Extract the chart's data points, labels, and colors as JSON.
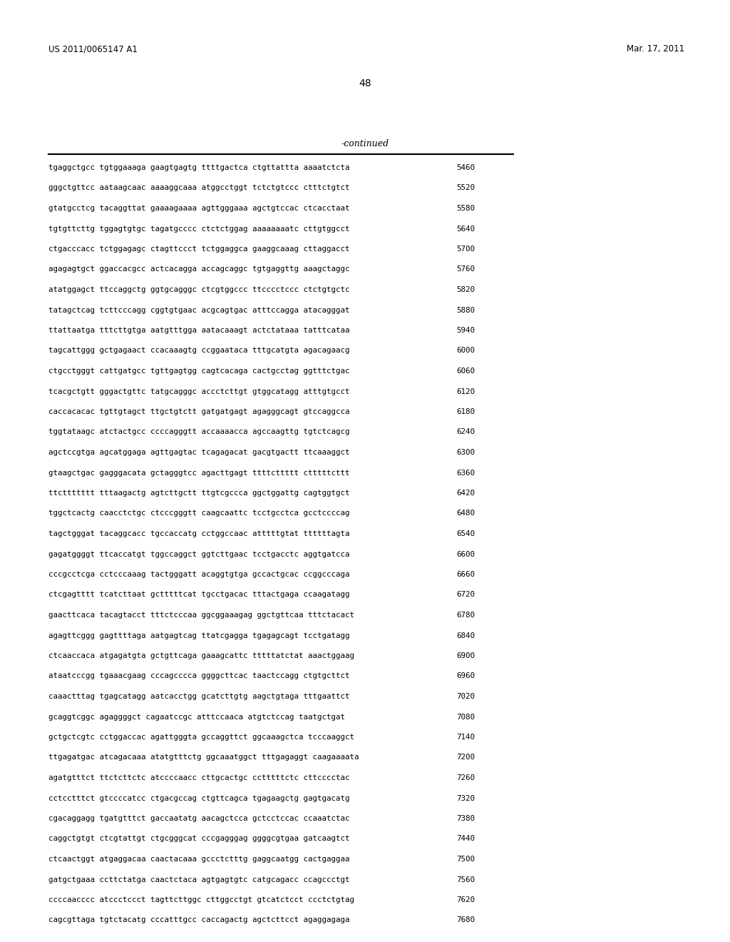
{
  "header_left": "US 2011/0065147 A1",
  "header_right": "Mar. 17, 2011",
  "page_number": "48",
  "continued_label": "-continued",
  "sequence_lines": [
    [
      "tgaggctgcc tgtggaaaga gaagtgagtg ttttgactca ctgttattta aaaatctcta",
      "5460"
    ],
    [
      "gggctgttcc aataagcaac aaaaggcaaa atggcctggt tctctgtccc ctttctgtct",
      "5520"
    ],
    [
      "gtatgcctcg tacaggttat gaaaagaaaa agttgggaaa agctgtccac ctcacctaat",
      "5580"
    ],
    [
      "tgtgttcttg tggagtgtgc tagatgcccc ctctctggag aaaaaaaatc cttgtggcct",
      "5640"
    ],
    [
      "ctgacccacc tctggagagc ctagttccct tctggaggca gaaggcaaag cttaggacct",
      "5700"
    ],
    [
      "agagagtgct ggaccacgcc actcacagga accagcaggc tgtgaggttg aaagctaggc",
      "5760"
    ],
    [
      "atatggagct ttccaggctg ggtgcagggc ctcgtggccc ttcccctccc ctctgtgctc",
      "5820"
    ],
    [
      "tatagctcag tcttcccagg cggtgtgaac acgcagtgac atttccagga atacagggat",
      "5880"
    ],
    [
      "ttattaatga tttcttgtga aatgtttgga aatacaaagt actctataaa tatttcataa",
      "5940"
    ],
    [
      "tagcattggg gctgagaact ccacaaagtg ccggaataca tttgcatgta agacagaacg",
      "6000"
    ],
    [
      "ctgcctgggt cattgatgcc tgttgagtgg cagtcacaga cactgcctag ggtttctgac",
      "6060"
    ],
    [
      "tcacgctgtt gggactgttc tatgcagggc accctcttgt gtggcatagg atttgtgcct",
      "6120"
    ],
    [
      "caccacacac tgttgtagct ttgctgtctt gatgatgagt agagggcagt gtccaggcca",
      "6180"
    ],
    [
      "tggtataagc atctactgcc ccccagggtt accaaaacca agccaagttg tgtctcagcg",
      "6240"
    ],
    [
      "agctccgtga agcatggaga agttgagtac tcagagacat gacgtgactt ttcaaaggct",
      "6300"
    ],
    [
      "gtaagctgac gagggacata gctagggtcc agacttgagt ttttcttttt ctttttcttt",
      "6360"
    ],
    [
      "ttcttttttt tttaagactg agtcttgctt ttgtcgccca ggctggattg cagtggtgct",
      "6420"
    ],
    [
      "tggctcactg caacctctgc ctcccgggtt caagcaattc tcctgcctca gcctccccag",
      "6480"
    ],
    [
      "tagctgggat tacaggcacc tgccaccatg cctggccaac atttttgtat ttttttagta",
      "6540"
    ],
    [
      "gagatggggt ttcaccatgt tggccaggct ggtcttgaac tcctgacctc aggtgatcca",
      "6600"
    ],
    [
      "cccgcctcga cctcccaaag tactgggatt acaggtgtga gccactgcac ccggcccaga",
      "6660"
    ],
    [
      "ctcgagtttt tcatcttaat gctttttcat tgcctgacac tttactgaga ccaagatagg",
      "6720"
    ],
    [
      "gaacttcaca tacagtacct tttctcccaa ggcggaaagag ggctgttcaa tttctacact",
      "6780"
    ],
    [
      "agagttcggg gagttttaga aatgagtcag ttatcgagga tgagagcagt tcctgatagg",
      "6840"
    ],
    [
      "ctcaaccaca atgagatgta gctgttcaga gaaagcattc tttttatctat aaactggaag",
      "6900"
    ],
    [
      "ataatcccgg tgaaacgaag cccagcccca ggggcttcac taactccagg ctgtgcttct",
      "6960"
    ],
    [
      "caaactttag tgagcatagg aatcacctgg gcatcttgtg aagctgtaga tttgaattct",
      "7020"
    ],
    [
      "gcaggtcggc agaggggct cagaatccgc atttccaaca atgtctccag taatgctgat",
      "7080"
    ],
    [
      "gctgctcgtc cctggaccac agattgggta gccaggttct ggcaaagctca tcccaaggct",
      "7140"
    ],
    [
      "ttgagatgac atcagacaaa atatgtttctg ggcaaatggct tttgagaggt caagaaaata",
      "7200"
    ],
    [
      "agatgtttct ttctcttctc atccccaacc cttgcactgc cctttttctc cttcccctac",
      "7260"
    ],
    [
      "cctcctttct gtccccatcc ctgacgccag ctgttcagca tgagaagctg gagtgacatg",
      "7320"
    ],
    [
      "cgacaggagg tgatgtttct gaccaatatg aacagctcca gctcctccac ccaaatctac",
      "7380"
    ],
    [
      "caggctgtgt ctcgtattgt ctgcgggcat cccgagggag ggggcgtgaa gatcaagtct",
      "7440"
    ],
    [
      "ctcaactggt atgaggacaa caactacaaa gccctctttg gaggcaatgg cactgaggaa",
      "7500"
    ],
    [
      "gatgctgaaa ccttctatga caactctaca agtgagtgtc catgcagacc ccagccctgt",
      "7560"
    ],
    [
      "ccccaacccc atccctccct tagttcttggc cttggcctgt gtcatctcct ccctctgtag",
      "7620"
    ],
    [
      "cagcgttaga tgtctacatg cccatttgcc caccagactg agctcttcct agaggagaga",
      "7680"
    ]
  ],
  "bg_color": "#ffffff",
  "text_color": "#000000",
  "header_fontsize": 8.5,
  "page_num_fontsize": 10,
  "continued_fontsize": 9,
  "seq_fontsize": 7.8,
  "num_fontsize": 7.8
}
